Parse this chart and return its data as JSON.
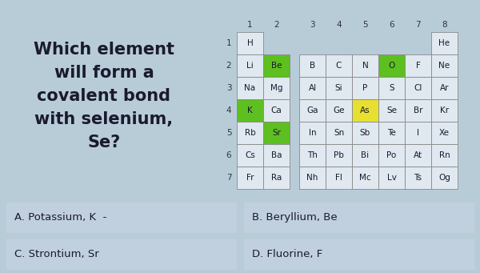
{
  "title_lines": [
    "Which element",
    "will form a",
    "covalent bond",
    "with selenium,",
    "Se?"
  ],
  "bg_color": "#b8ccd8",
  "question_color": "#1a1a2e",
  "cells": [
    [
      "H",
      "",
      "",
      "",
      "",
      "",
      "",
      "",
      "He"
    ],
    [
      "Li",
      "Be",
      "",
      "B",
      "C",
      "N",
      "O",
      "F",
      "Ne"
    ],
    [
      "Na",
      "Mg",
      "",
      "Al",
      "Si",
      "P",
      "S",
      "Cl",
      "Ar"
    ],
    [
      "K",
      "Ca",
      "",
      "Ga",
      "Ge",
      "As",
      "Se",
      "Br",
      "Kr"
    ],
    [
      "Rb",
      "Sr",
      "",
      "In",
      "Sn",
      "Sb",
      "Te",
      "I",
      "Xe"
    ],
    [
      "Cs",
      "Ba",
      "",
      "Th",
      "Pb",
      "Bi",
      "Po",
      "At",
      "Rn"
    ],
    [
      "Fr",
      "Ra",
      "",
      "Nh",
      "Fl",
      "Mc",
      "Lv",
      "Ts",
      "Og"
    ]
  ],
  "cell_colors": {
    "1_1": "#5dc020",
    "3_0": "#5dc020",
    "4_1": "#5dc020",
    "1_6": "#5dc020",
    "3_5": "#e8e030"
  },
  "default_cell_bg": "#e0e8f0",
  "cell_border_color": "#888888",
  "answers": [
    {
      "label": "A. Potassium, K  -",
      "col": 0,
      "row": 0
    },
    {
      "label": "B. Beryllium, Be",
      "col": 1,
      "row": 0
    },
    {
      "label": "C. Strontium, Sr",
      "col": 0,
      "row": 1
    },
    {
      "label": "D. Fluorine, F",
      "col": 1,
      "row": 1
    }
  ],
  "answer_bg": "#c0d0de",
  "answer_text_color": "#1a1a2e"
}
